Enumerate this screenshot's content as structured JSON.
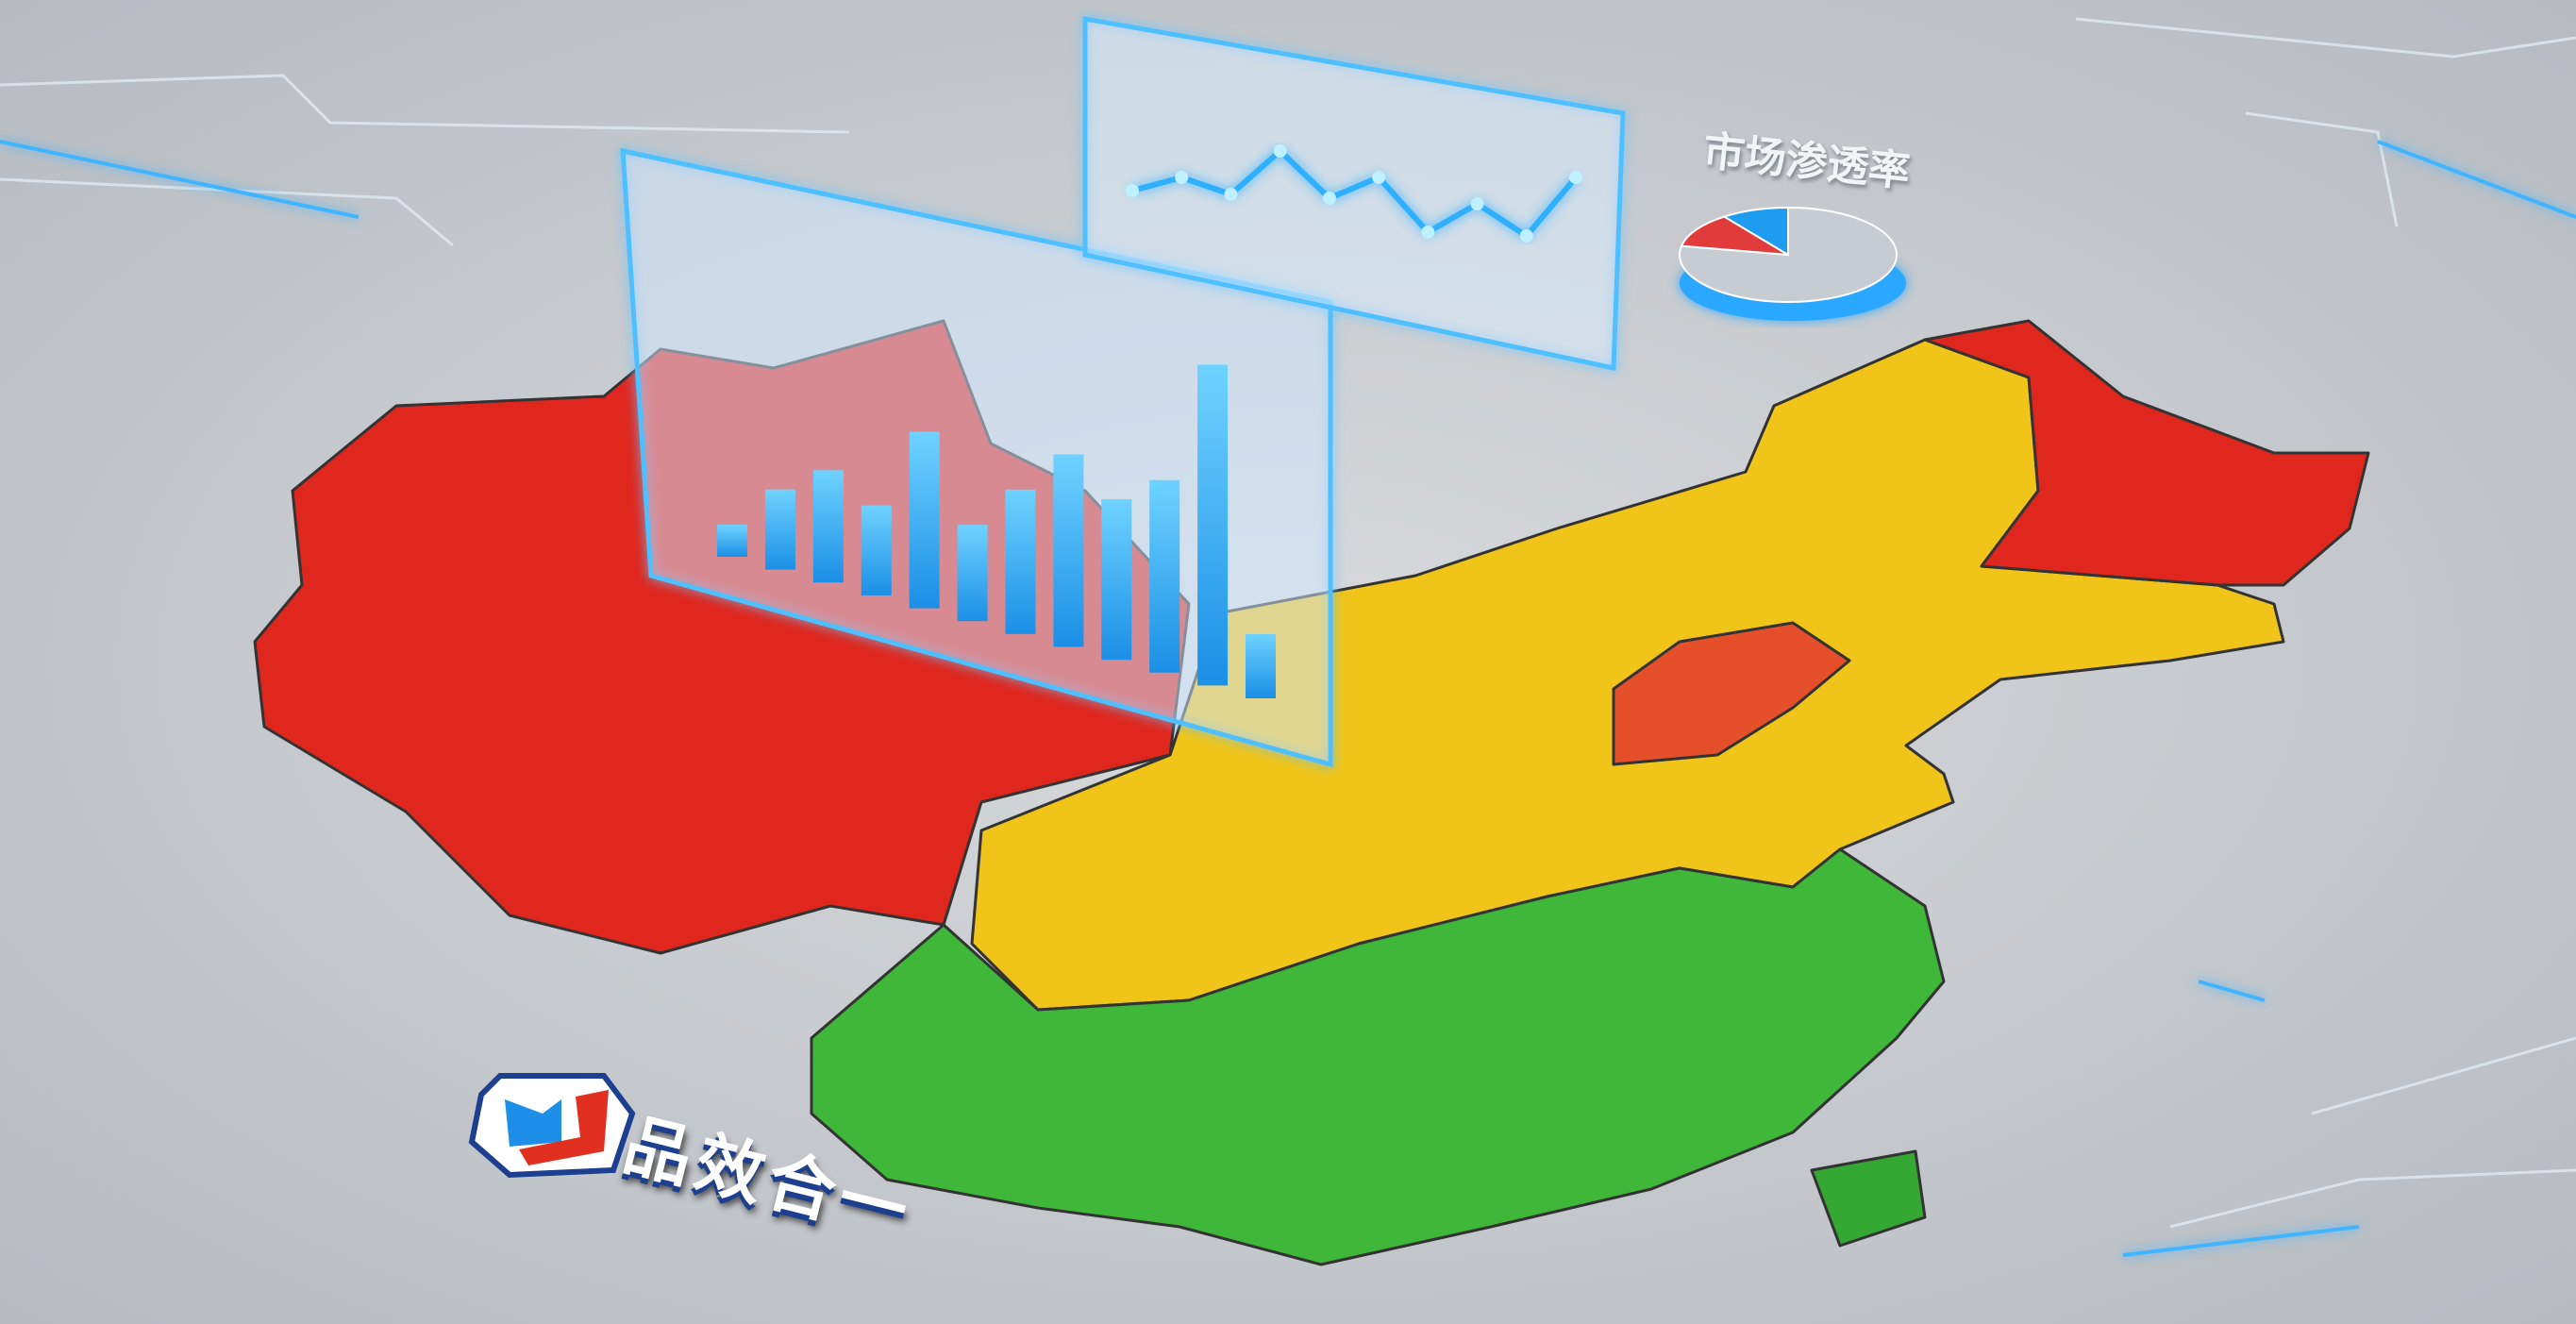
{
  "pie_title": "市场渗透率",
  "slogan": "品效合一",
  "logo": {
    "shape": "hexagon badge with blue and red arrow mark"
  },
  "colors": {
    "high": "#e0271e",
    "medium": "#f0c419",
    "low": "#3fb83a",
    "accent": "#29a8ff",
    "background": "#c9ccd0"
  },
  "bar_chart": {
    "type": "bar",
    "values": [
      0.1,
      0.25,
      0.35,
      0.28,
      0.55,
      0.3,
      0.45,
      0.6,
      0.5,
      0.6,
      1.0,
      0.2
    ]
  },
  "line_chart": {
    "type": "line",
    "values": [
      0.3,
      0.45,
      0.4,
      0.75,
      0.5,
      0.7,
      0.4,
      0.65,
      0.5,
      0.95
    ]
  },
  "pie_chart": {
    "type": "pie",
    "slices": [
      {
        "value": 78,
        "color": "#c7ccd2"
      },
      {
        "value": 12,
        "color": "#e23b3b"
      },
      {
        "value": 10,
        "color": "#1e9cf0"
      }
    ]
  }
}
